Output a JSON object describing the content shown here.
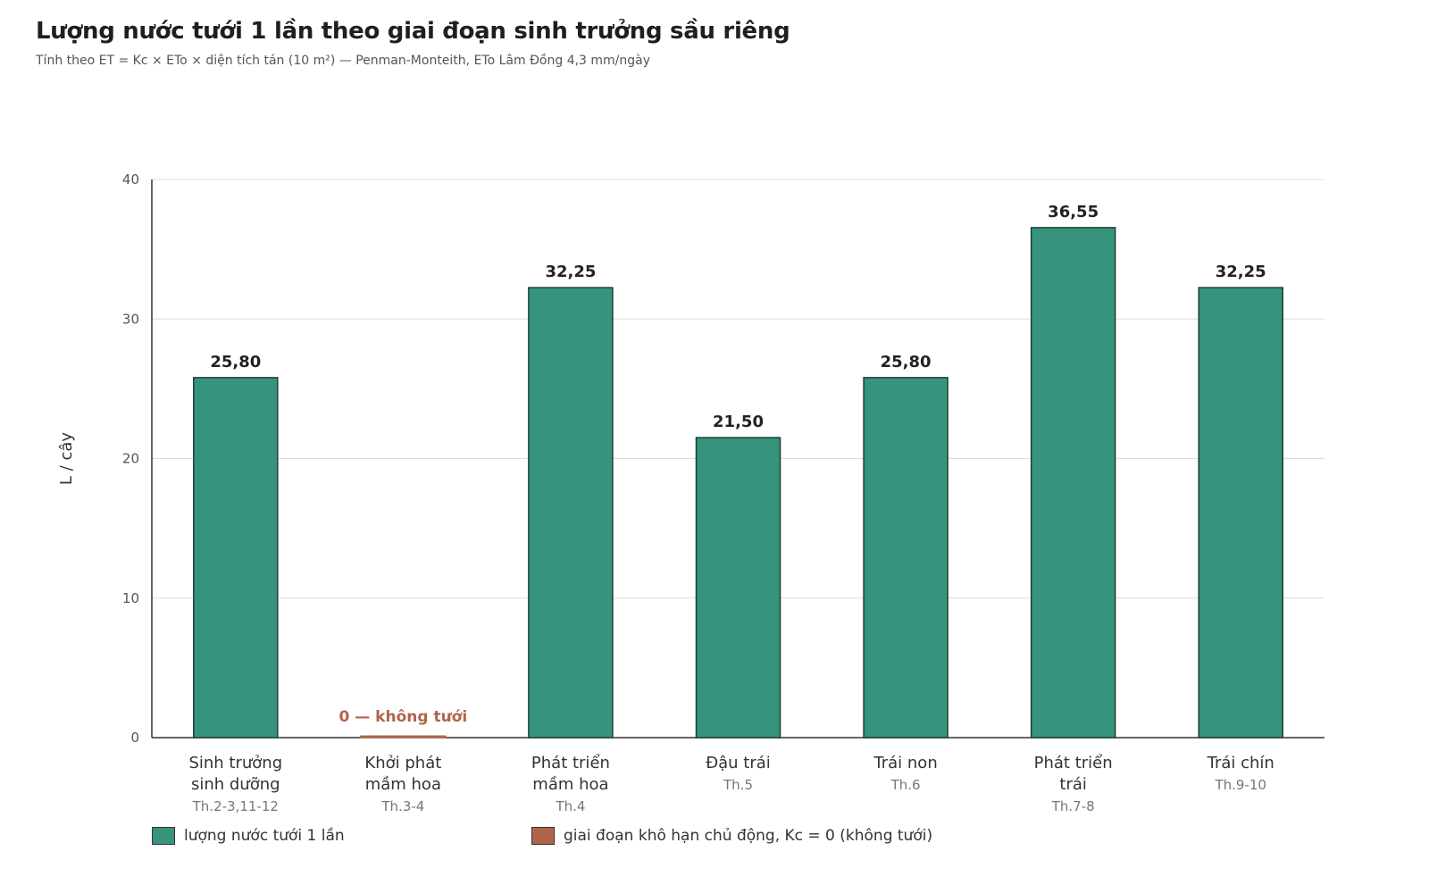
{
  "title": "Lượng nước tưới 1 lần theo giai đoạn sinh trưởng sầu riêng",
  "subtitle": "Tính theo ET = Kc × ETo × diện tích tán (10 m²) — Penman-Monteith, ETo Lâm Đồng 4,3 mm/ngày",
  "colors": {
    "bar": "#36947d",
    "dry": "#b0654a",
    "grid": "#dddddd",
    "axis": "#333333"
  },
  "chart_data": {
    "type": "bar",
    "ylabel": "L / cây",
    "ylim": [
      0,
      40
    ],
    "yticks": [
      "0",
      "10",
      "20",
      "30",
      "40"
    ],
    "categories": [
      {
        "name": [
          "Sinh trưởng",
          "sinh dưỡng"
        ],
        "months": "Th.2-3,11-12"
      },
      {
        "name": [
          "Khởi phát",
          "mầm hoa"
        ],
        "months": "Th.3-4"
      },
      {
        "name": [
          "Phát triển",
          "mầm hoa"
        ],
        "months": "Th.4"
      },
      {
        "name": [
          "Đậu trái"
        ],
        "months": "Th.5"
      },
      {
        "name": [
          "Trái non"
        ],
        "months": "Th.6"
      },
      {
        "name": [
          "Phát triển",
          "trái"
        ],
        "months": "Th.7-8"
      },
      {
        "name": [
          "Trái chín"
        ],
        "months": "Th.9-10"
      }
    ],
    "values": [
      25.8,
      0,
      32.25,
      21.5,
      25.8,
      36.55,
      32.25
    ],
    "labels": [
      "25,80",
      "0 — không tưới",
      "32,25",
      "21,50",
      "25,80",
      "36,55",
      "32,25"
    ],
    "dry_index": 1,
    "grid": true,
    "legend_position": "bottom-left"
  },
  "legend": {
    "bar_label": "lượng nước tưới 1 lần",
    "dry_label": "giai đoạn khô hạn chủ động, Kc = 0 (không tưới)"
  }
}
